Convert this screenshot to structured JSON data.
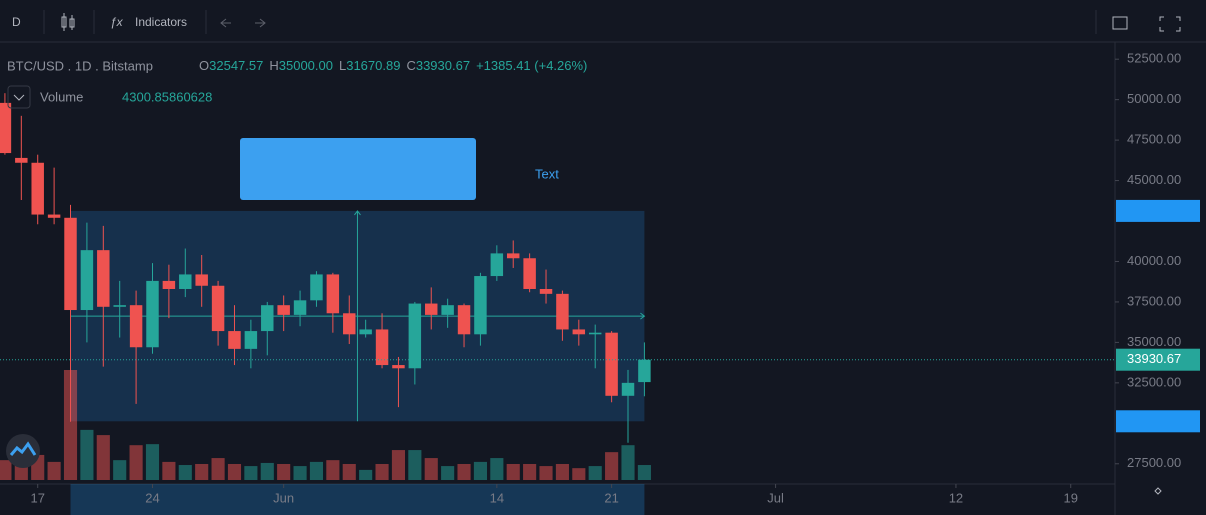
{
  "toolbar": {
    "interval": "D",
    "indicators": "Indicators"
  },
  "legend": {
    "symbol": "BTC/USD . 1D . Bitstamp",
    "ohlc": [
      {
        "key": "O",
        "value": "32547.57"
      },
      {
        "key": "H",
        "value": "35000.00"
      },
      {
        "key": "L",
        "value": "31670.89"
      },
      {
        "key": "C",
        "value": "33930.67"
      }
    ],
    "change": "+1385.41 (+4.26%)",
    "volume_name": "Volume",
    "volume_value": "4300.85860628"
  },
  "annotation": "Text",
  "chart_data": {
    "type": "candlestick",
    "up_color": "#26a69a",
    "down_color": "#ef5350",
    "open": [
      49800,
      46400,
      46100,
      42900,
      42700,
      37000,
      40700,
      37200,
      37300,
      34700,
      38800,
      38300,
      39200,
      38500,
      35700,
      34600,
      35700,
      37300,
      36700,
      37600,
      39200,
      36800,
      35500,
      35800,
      33600,
      33400,
      37400,
      36700,
      37300,
      35500,
      39100,
      40500,
      40200,
      38300,
      38000,
      35800,
      35500,
      35600,
      31700,
      32547.57
    ],
    "high": [
      50400,
      49000,
      46600,
      45800,
      43500,
      42400,
      42200,
      38800,
      38200,
      39900,
      39800,
      40800,
      40400,
      38800,
      37300,
      36400,
      37500,
      37900,
      38200,
      39400,
      39300,
      37900,
      36400,
      36800,
      34100,
      37500,
      38400,
      37700,
      37400,
      39300,
      41000,
      41300,
      40500,
      39500,
      38200,
      36400,
      36100,
      35700,
      33300,
      35000
    ],
    "low": [
      46600,
      43800,
      42300,
      42300,
      30100,
      35000,
      33500,
      35300,
      31200,
      34300,
      36500,
      37800,
      37200,
      34800,
      33600,
      33400,
      34200,
      35700,
      36000,
      37200,
      35600,
      34900,
      35300,
      33400,
      31000,
      32400,
      35800,
      35900,
      34700,
      34800,
      38800,
      39600,
      38100,
      37400,
      35100,
      34800,
      33400,
      31300,
      28800,
      31670.89
    ],
    "close": [
      46700,
      46100,
      42900,
      42700,
      37000,
      40700,
      37200,
      37300,
      34700,
      38800,
      38300,
      39200,
      38500,
      35700,
      34600,
      35700,
      37300,
      36700,
      37600,
      39200,
      36800,
      35500,
      35800,
      33600,
      33400,
      37400,
      36700,
      37300,
      35500,
      39100,
      40500,
      40200,
      38300,
      38000,
      35800,
      35500,
      35600,
      31700,
      32500,
      33930.67
    ],
    "volume": [
      5700,
      5700,
      7200,
      5200,
      31600,
      14400,
      12900,
      5700,
      10000,
      10300,
      5200,
      4300,
      4600,
      6300,
      4600,
      4000,
      4900,
      4600,
      4000,
      5200,
      5700,
      4600,
      2900,
      4600,
      8600,
      8600,
      6300,
      4000,
      4600,
      5200,
      6300,
      4600,
      4600,
      4000,
      4600,
      3400,
      4000,
      8000,
      10000,
      4300.85860628
    ],
    "xlim": [
      -0.3,
      67.7
    ],
    "xticks": [
      {
        "value": 2,
        "label": "17"
      },
      {
        "value": 9,
        "label": "24"
      },
      {
        "value": 17,
        "label": "Jun"
      },
      {
        "value": 30,
        "label": "14"
      },
      {
        "value": 37,
        "label": "21"
      },
      {
        "value": 47,
        "label": "Jul"
      },
      {
        "value": 58,
        "label": "12"
      },
      {
        "value": 65,
        "label": "19"
      }
    ],
    "ylim": [
      26250,
      53562.5
    ],
    "yticks": [
      {
        "value": 27500,
        "label": "27500.00"
      },
      {
        "value": 32500,
        "label": "32500.00"
      },
      {
        "value": 35000,
        "label": "35000.00"
      },
      {
        "value": 37500,
        "label": "37500.00"
      },
      {
        "value": 40000,
        "label": "40000.00"
      },
      {
        "value": 45000,
        "label": "45000.00"
      },
      {
        "value": 47500,
        "label": "47500.00"
      },
      {
        "value": 50000,
        "label": "50000.00"
      },
      {
        "value": 52500,
        "label": "52500.00"
      }
    ],
    "last_price": {
      "value": 33930.67,
      "label": "33930.67"
    },
    "range_top": 43125,
    "range_bottom": 30125,
    "range_start": 4,
    "range_end": 39
  }
}
